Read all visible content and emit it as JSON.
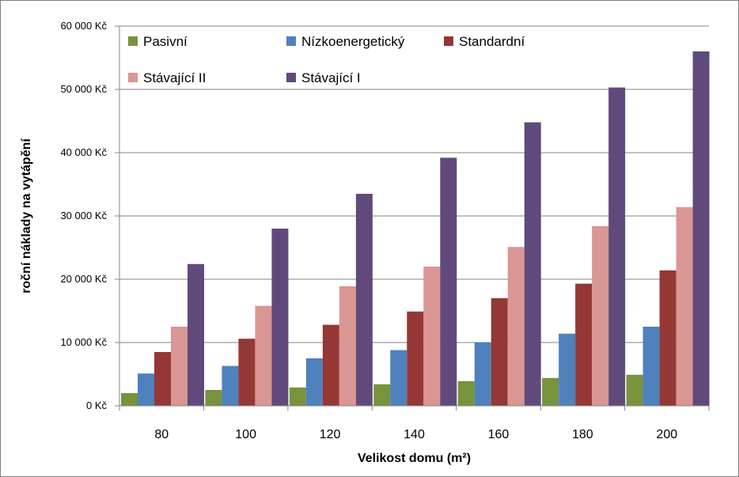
{
  "chart_data": {
    "type": "bar",
    "title": "",
    "xlabel": "Velikost domu (m²)",
    "ylabel": "roční náklady na vytápění",
    "categories": [
      "80",
      "100",
      "120",
      "140",
      "160",
      "180",
      "200"
    ],
    "ylim": [
      0,
      60000
    ],
    "yticks": [
      {
        "value": 0,
        "label": "0 Kč"
      },
      {
        "value": 10000,
        "label": "10 000 Kč"
      },
      {
        "value": 20000,
        "label": "20 000 Kč"
      },
      {
        "value": 30000,
        "label": "30 000 Kč"
      },
      {
        "value": 40000,
        "label": "40 000 Kč"
      },
      {
        "value": 50000,
        "label": "50 000 Kč"
      },
      {
        "value": 60000,
        "label": "60 000 Kč"
      }
    ],
    "grid": true,
    "legend_position": "top-left",
    "series": [
      {
        "name": "Pasivní",
        "color": "#77933C",
        "values": [
          2000,
          2500,
          2900,
          3400,
          3900,
          4400,
          4900
        ]
      },
      {
        "name": "Nízkoenergetický",
        "color": "#4F81BD",
        "values": [
          5100,
          6300,
          7500,
          8800,
          10000,
          11400,
          12500
        ]
      },
      {
        "name": "Standardní",
        "color": "#953735",
        "values": [
          8500,
          10600,
          12800,
          14900,
          17000,
          19300,
          21400
        ]
      },
      {
        "name": "Stávající II",
        "color": "#D99694",
        "values": [
          12500,
          15800,
          18900,
          22000,
          25100,
          28400,
          31400
        ]
      },
      {
        "name": "Stávající I",
        "color": "#604A7B",
        "values": [
          22400,
          28000,
          33500,
          39200,
          44800,
          50300,
          56000
        ]
      }
    ]
  }
}
